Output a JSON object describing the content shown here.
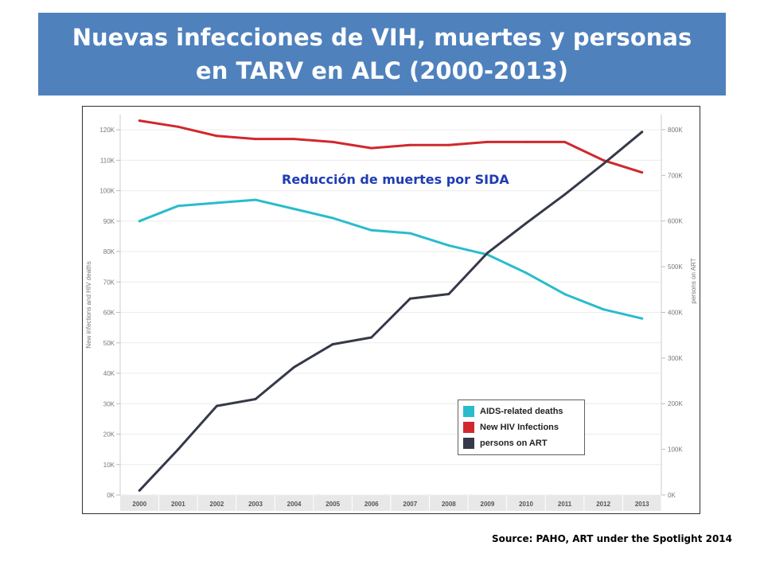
{
  "title": "Nuevas infecciones de VIH, muertes y personas en TARV en ALC (2000-2013)",
  "annotation": "Reducción de muertes por SIDA",
  "source": "Source: PAHO, ART under the Spotlight 2014",
  "chart_data": {
    "type": "line",
    "x": [
      "2000",
      "2001",
      "2002",
      "2003",
      "2004",
      "2005",
      "2006",
      "2007",
      "2008",
      "2009",
      "2010",
      "2011",
      "2012",
      "2013"
    ],
    "y_left_label": "New infections and HIV deaths",
    "y_right_label": "persons on ART",
    "y_left_ticks": [
      "0K",
      "10K",
      "20K",
      "30K",
      "40K",
      "50K",
      "60K",
      "70K",
      "80K",
      "90K",
      "100K",
      "110K",
      "120K"
    ],
    "y_right_ticks": [
      "0K",
      "100K",
      "200K",
      "300K",
      "400K",
      "500K",
      "600K",
      "700K",
      "800K"
    ],
    "ylim_left": [
      0,
      125000
    ],
    "ylim_right": [
      0,
      833000
    ],
    "grid": true,
    "legend_position": "bottom-right",
    "series": [
      {
        "name": "AIDS-related deaths",
        "axis": "left",
        "color": "#29bccc",
        "values": [
          90000,
          95000,
          96000,
          97000,
          94000,
          91000,
          87000,
          86000,
          82000,
          79000,
          73000,
          66000,
          61000,
          58000
        ]
      },
      {
        "name": "New HIV Infections",
        "axis": "left",
        "color": "#d0282e",
        "values": [
          123000,
          121000,
          118000,
          117000,
          117000,
          116000,
          114000,
          115000,
          115000,
          116000,
          116000,
          116000,
          110000,
          106000
        ]
      },
      {
        "name": "persons on ART",
        "axis": "right",
        "color": "#353948",
        "values": [
          10000,
          100000,
          195000,
          210000,
          280000,
          330000,
          345000,
          430000,
          440000,
          530000,
          595000,
          658000,
          725000,
          795000
        ]
      }
    ]
  }
}
